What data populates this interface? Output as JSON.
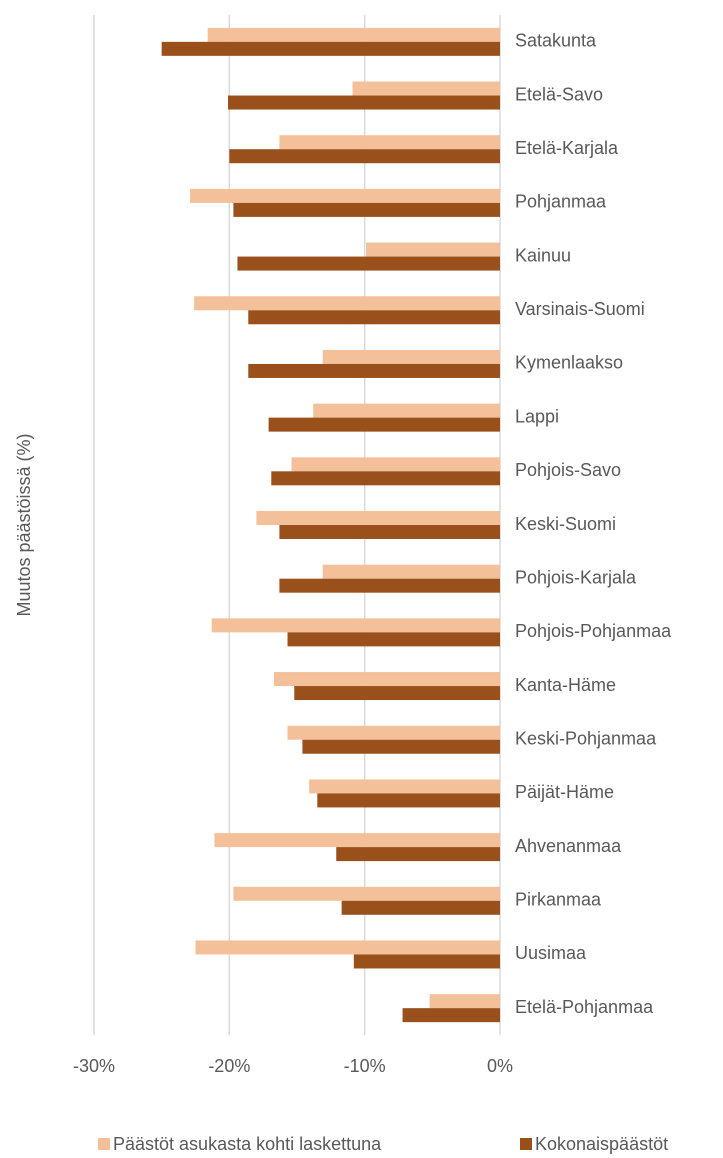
{
  "chart_data": {
    "type": "barh",
    "ylabel": "Muutos päästöissä (%)",
    "categories": [
      "Satakunta",
      "Etelä-Savo",
      "Etelä-Karjala",
      "Pohjanmaa",
      "Kainuu",
      "Varsinais-Suomi",
      "Kymenlaakso",
      "Lappi",
      "Pohjois-Savo",
      "Keski-Suomi",
      "Pohjois-Karjala",
      "Pohjois-Pohjanmaa",
      "Kanta-Häme",
      "Keski-Pohjanmaa",
      "Päijät-Häme",
      "Ahvenanmaa",
      "Pirkanmaa",
      "Uusimaa",
      "Etelä-Pohjanmaa"
    ],
    "series": [
      {
        "name": "Päästöt asukasta kohti laskettuna",
        "color": "#f4c09a",
        "values": [
          -21.6,
          -10.9,
          -16.3,
          -22.9,
          -9.9,
          -22.6,
          -13.1,
          -13.8,
          -15.4,
          -18.0,
          -13.1,
          -21.3,
          -16.7,
          -15.7,
          -14.1,
          -21.1,
          -19.7,
          -22.5,
          -5.2
        ]
      },
      {
        "name": "Kokonaispäästöt",
        "color": "#99501b",
        "values": [
          -25.0,
          -20.1,
          -20.0,
          -19.7,
          -19.4,
          -18.6,
          -18.6,
          -17.1,
          -16.9,
          -16.3,
          -16.3,
          -15.7,
          -15.2,
          -14.6,
          -13.5,
          -12.1,
          -11.7,
          -10.8,
          -7.2
        ]
      }
    ],
    "xlim": [
      -30,
      0
    ],
    "xticks": [
      {
        "value": -30,
        "label": "-30%"
      },
      {
        "value": -20,
        "label": "-20%"
      },
      {
        "value": -10,
        "label": "-10%"
      },
      {
        "value": 0,
        "label": "0%"
      }
    ],
    "grid": true,
    "legend": "bottom"
  }
}
